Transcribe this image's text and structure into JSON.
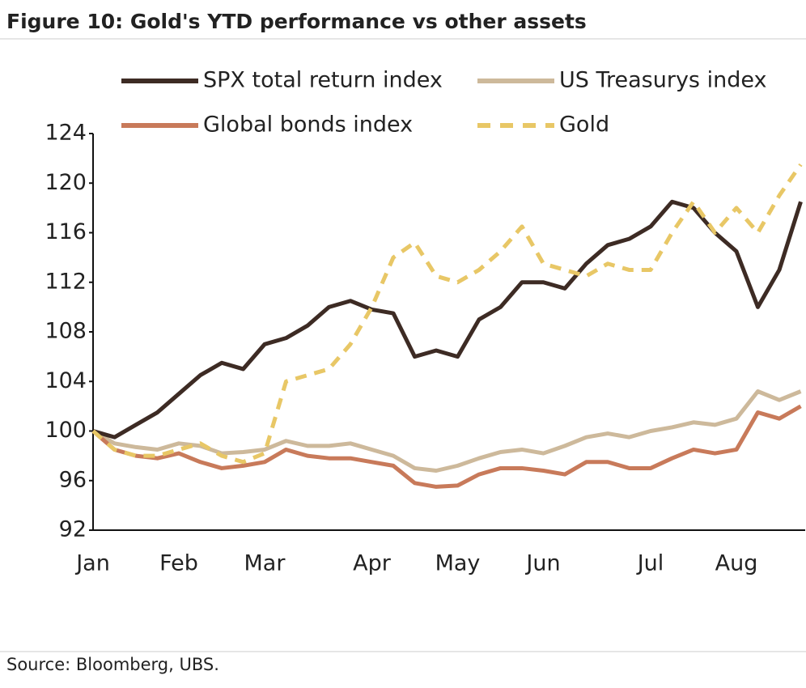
{
  "chart_data": {
    "type": "line",
    "title": "Figure 10: Gold's YTD performance vs other assets",
    "source": "Source: Bloomberg, UBS.",
    "categories": [
      "Jan",
      null,
      null,
      null,
      "Feb",
      null,
      null,
      null,
      "Mar",
      null,
      null,
      null,
      null,
      "Apr",
      null,
      null,
      null,
      "May",
      null,
      null,
      null,
      "Jun",
      null,
      null,
      null,
      null,
      "Jul",
      null,
      null,
      null,
      "Aug",
      null,
      null,
      null
    ],
    "series": [
      {
        "name": "SPX total return index",
        "color": "#3d2b24",
        "style": "solid",
        "values": [
          100,
          99.5,
          100.5,
          101.5,
          103,
          104.5,
          105.5,
          105,
          107,
          107.5,
          108.5,
          110,
          110.5,
          109.8,
          109.5,
          106,
          106.5,
          106,
          109,
          110,
          112,
          112,
          111.5,
          113.5,
          115,
          115.5,
          116.5,
          118.5,
          118,
          116,
          114.5,
          110,
          113,
          118.5
        ]
      },
      {
        "name": "US Treasurys index",
        "color": "#cdb99b",
        "style": "solid",
        "values": [
          100,
          99,
          98.7,
          98.5,
          99,
          98.8,
          98.2,
          98.3,
          98.5,
          99.2,
          98.8,
          98.8,
          99,
          98.5,
          98,
          97,
          96.8,
          97.2,
          97.8,
          98.3,
          98.5,
          98.2,
          98.8,
          99.5,
          99.8,
          99.5,
          100,
          100.3,
          100.7,
          100.5,
          101,
          103.2,
          102.5,
          103.2
        ]
      },
      {
        "name": "Global bonds index",
        "color": "#c87a5a",
        "style": "solid",
        "values": [
          100,
          98.5,
          98,
          97.8,
          98.2,
          97.5,
          97,
          97.2,
          97.5,
          98.5,
          98,
          97.8,
          97.8,
          97.5,
          97.2,
          95.8,
          95.5,
          95.6,
          96.5,
          97,
          97,
          96.8,
          96.5,
          97.5,
          97.5,
          97,
          97,
          97.8,
          98.5,
          98.2,
          98.5,
          101.5,
          101,
          102
        ]
      },
      {
        "name": "Gold",
        "color": "#e8c766",
        "style": "dashed",
        "values": [
          100,
          98.5,
          98,
          98,
          98.5,
          99,
          98,
          97.5,
          98.2,
          104,
          104.5,
          105,
          107,
          110,
          114,
          115.2,
          112.5,
          112,
          113,
          114.5,
          116.5,
          113.5,
          113,
          112.5,
          113.5,
          113,
          113,
          116,
          118.5,
          116,
          118,
          116,
          119,
          121.5
        ]
      }
    ],
    "ylim": [
      92,
      124
    ],
    "yticks": [
      92,
      96,
      100,
      104,
      108,
      112,
      116,
      120,
      124
    ],
    "grid": false
  }
}
